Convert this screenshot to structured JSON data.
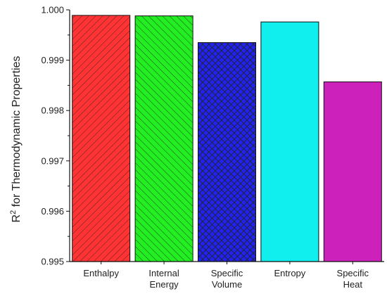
{
  "chart_data": {
    "type": "bar",
    "categories": [
      [
        "Enthalpy"
      ],
      [
        "Internal",
        "Energy"
      ],
      [
        "Specific",
        "Volume"
      ],
      [
        "Entropy"
      ],
      [
        "Specific",
        "Heat"
      ]
    ],
    "values": [
      0.99989,
      0.99988,
      0.99935,
      0.99976,
      0.99857
    ],
    "colors": [
      "#ff3333",
      "#22ee22",
      "#2222ee",
      "#11eeee",
      "#cc22bb"
    ],
    "patterns": [
      "diagonal",
      "diagonal-reverse",
      "crosshatch",
      "none",
      "none"
    ],
    "ylabel_main": "R",
    "ylabel_sup": "2",
    "ylabel_rest": " for Thermodynamic Properties",
    "ylim": [
      0.995,
      1.0
    ],
    "yticks": [
      "0.995",
      "0.996",
      "0.997",
      "0.998",
      "0.999",
      "1.000"
    ],
    "grid": false
  }
}
